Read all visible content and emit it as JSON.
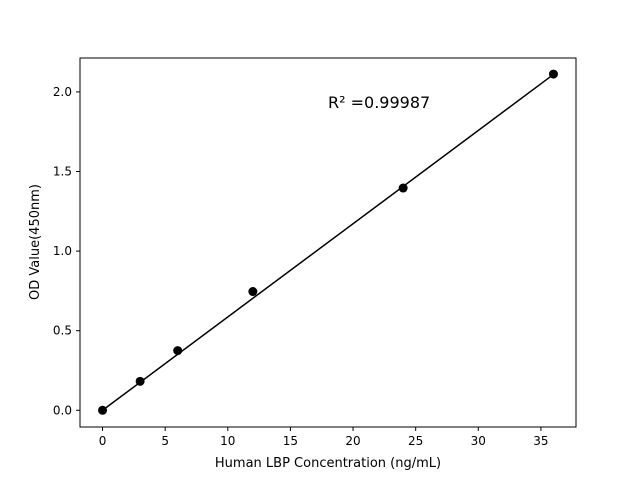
{
  "chart_data": {
    "type": "scatter",
    "title": "",
    "xlabel": "Human LBP Concentration (ng/mL)",
    "ylabel": "OD Value(450nm)",
    "xlim": [
      -1.8,
      37.8
    ],
    "ylim": [
      -0.105,
      2.213
    ],
    "xticks": [
      0,
      5,
      10,
      15,
      20,
      25,
      30,
      35
    ],
    "yticks": [
      0.0,
      0.5,
      1.0,
      1.5,
      2.0
    ],
    "xtick_labels": [
      "0",
      "5",
      "10",
      "15",
      "20",
      "25",
      "30",
      "35"
    ],
    "ytick_labels": [
      "0.0",
      "0.5",
      "1.0",
      "1.5",
      "2.0"
    ],
    "grid": false,
    "points": {
      "x": [
        0,
        3,
        6,
        12,
        24,
        36
      ],
      "y": [
        0.0,
        0.182,
        0.375,
        0.746,
        1.396,
        2.112
      ],
      "color": "#000000"
    },
    "fit_line": {
      "slope": 0.0586,
      "intercept": 0.0,
      "x_range": [
        0,
        36
      ],
      "color": "#000000"
    },
    "annotation": {
      "text": "R² =0.99987",
      "x": 18,
      "y": 1.9
    }
  }
}
